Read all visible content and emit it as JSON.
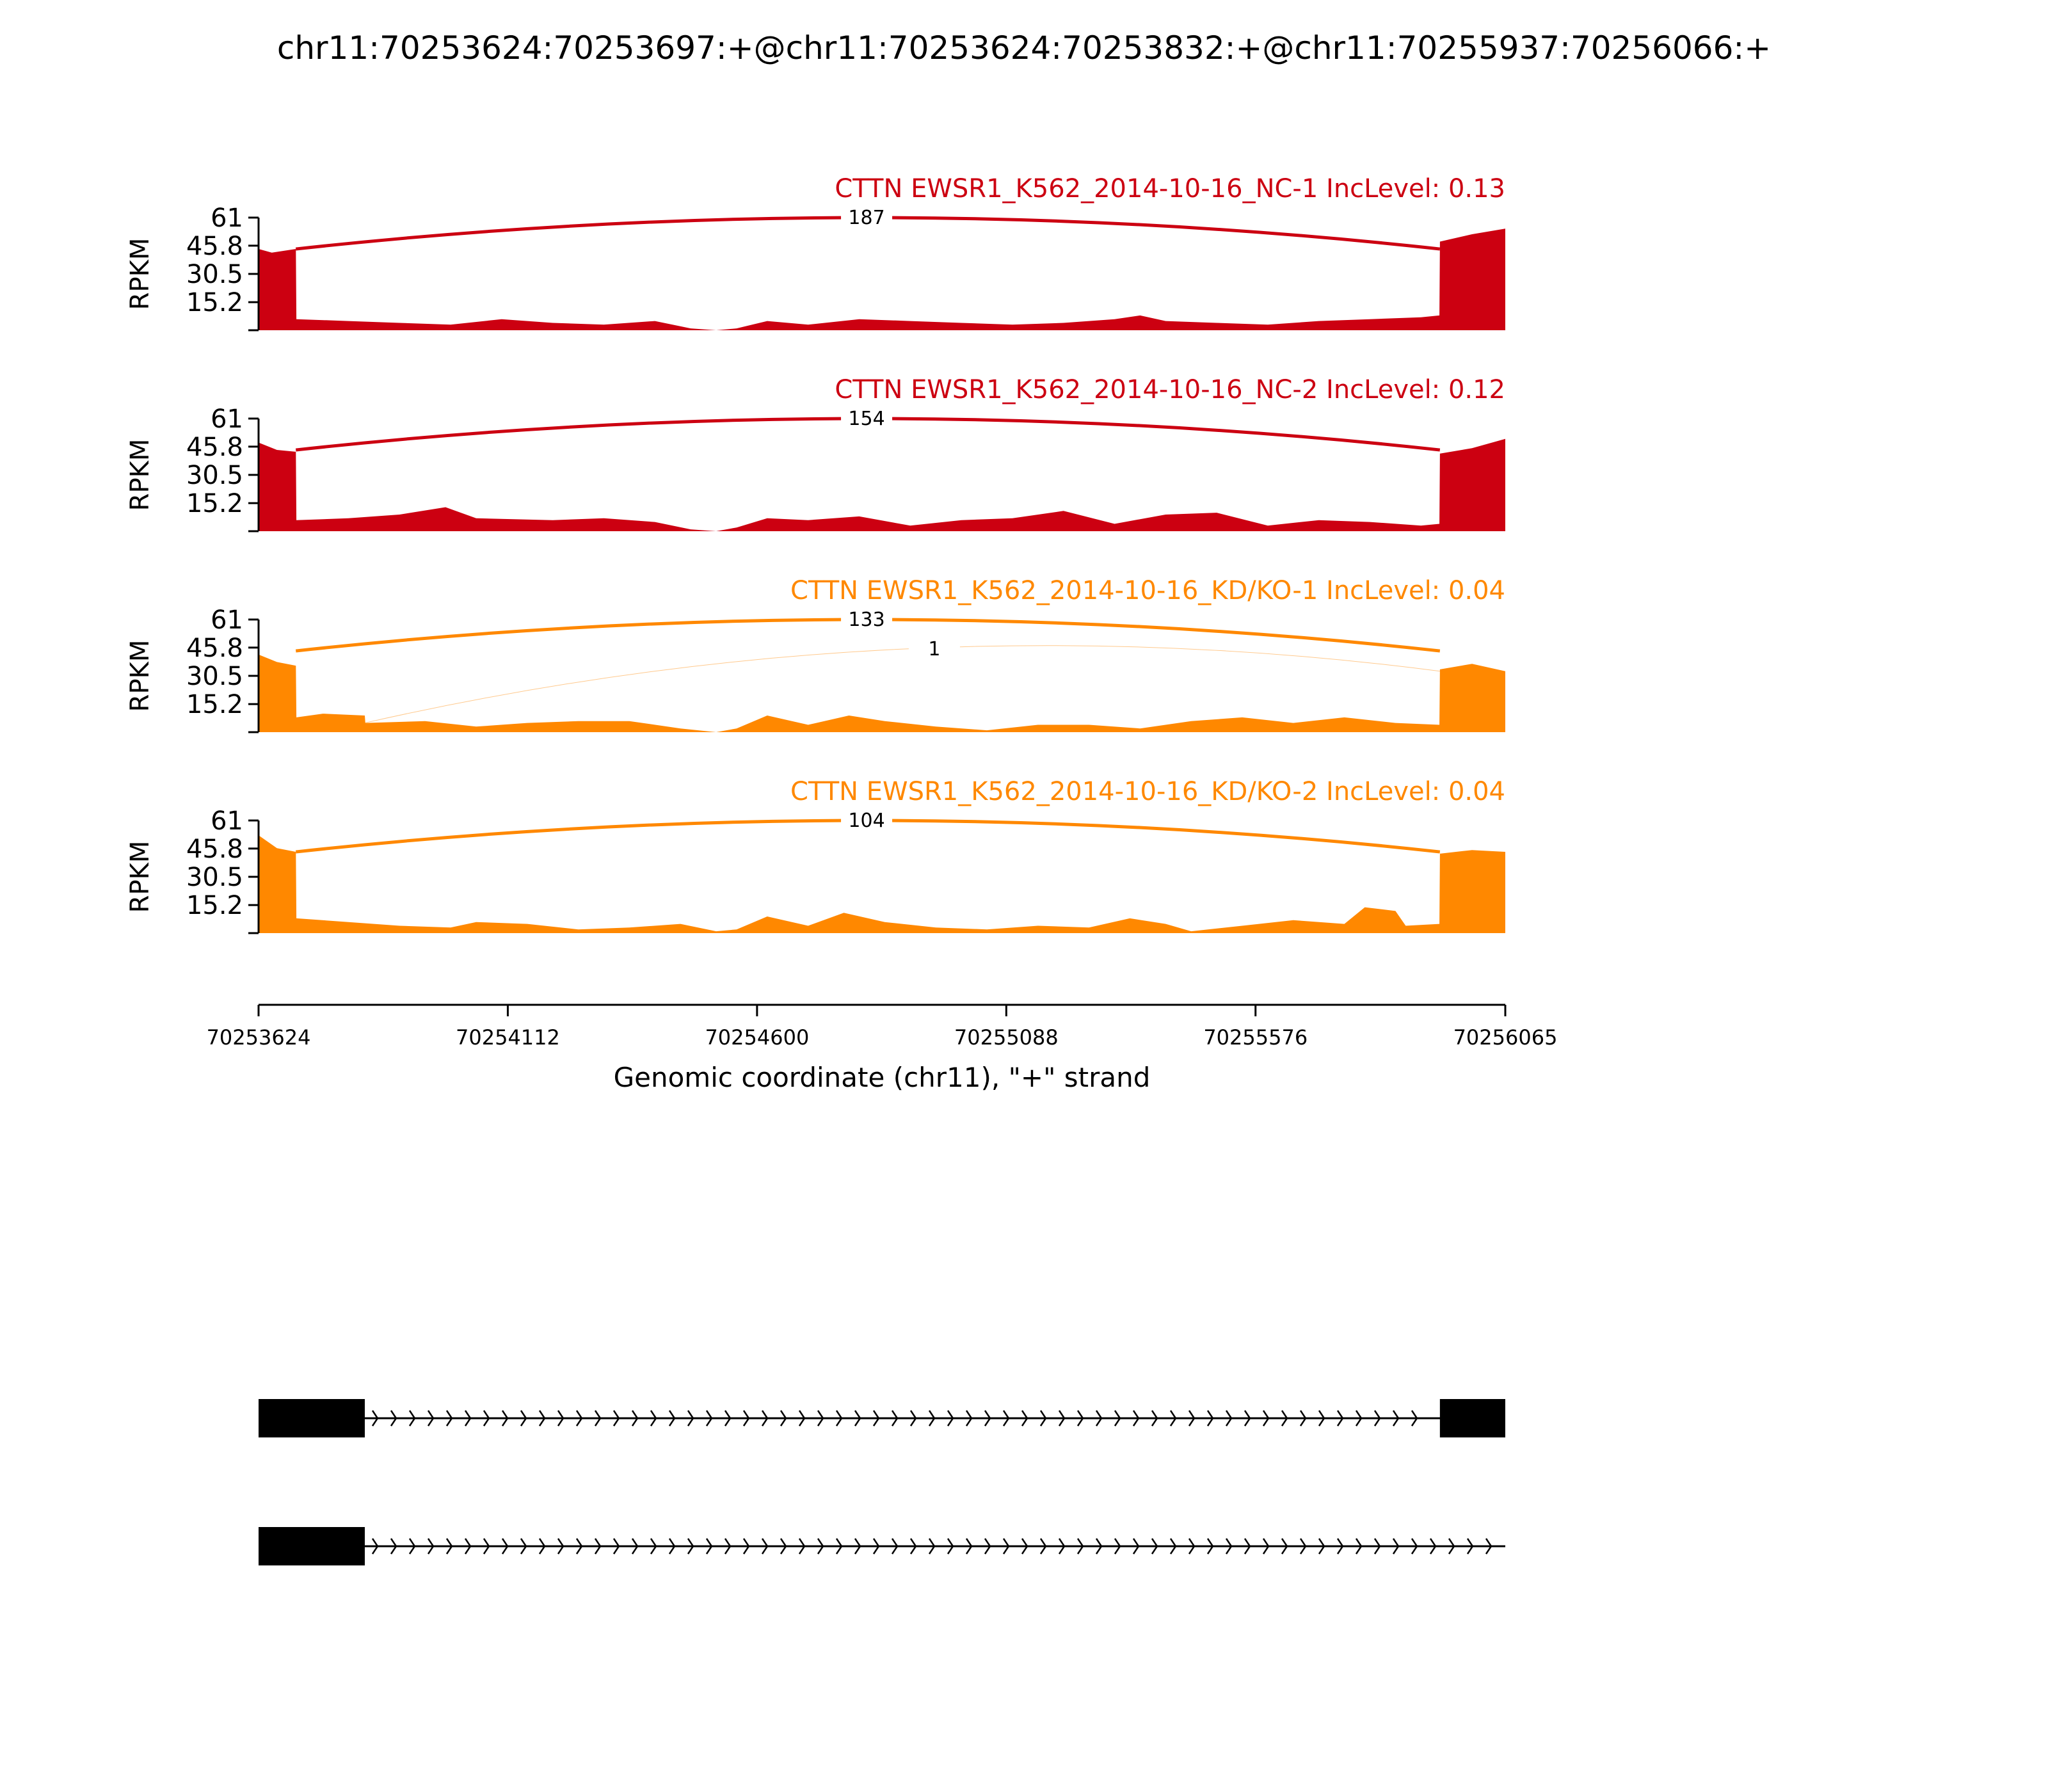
{
  "title": "chr11:70253624:70253697:+@chr11:70253624:70253832:+@chr11:70255937:70256066:+",
  "chart_data": {
    "type": "area",
    "x_range": [
      70253624,
      70256065
    ],
    "y_range": [
      0,
      61
    ],
    "yticks": [
      "61",
      "45.8",
      "30.5",
      "15.2"
    ],
    "ytick_values": [
      61,
      45.8,
      30.5,
      15.2
    ],
    "ylabel": "RPKM",
    "xticks": [
      "70253624",
      "70254112",
      "70254600",
      "70255088",
      "70255576",
      "70256065"
    ],
    "xtick_values": [
      70253624,
      70254112,
      70254600,
      70255088,
      70255576,
      70256065
    ],
    "xlabel": "Genomic coordinate (chr11), \"+\" strand",
    "tracks": [
      {
        "label": "CTTN EWSR1_K562_2014-10-16_NC-1 IncLevel: 0.13",
        "color": "#cc0011",
        "junctions": [
          {
            "from": 70253697,
            "to": 70255937,
            "count": "187",
            "height": 61
          }
        ],
        "coverage": [
          [
            70253624,
            44
          ],
          [
            70253650,
            42
          ],
          [
            70253697,
            44
          ],
          [
            70253698,
            6
          ],
          [
            70253800,
            5
          ],
          [
            70253900,
            4
          ],
          [
            70254000,
            3
          ],
          [
            70254100,
            6
          ],
          [
            70254200,
            4
          ],
          [
            70254300,
            3
          ],
          [
            70254400,
            5
          ],
          [
            70254470,
            1
          ],
          [
            70254520,
            0
          ],
          [
            70254560,
            1
          ],
          [
            70254620,
            5
          ],
          [
            70254700,
            3
          ],
          [
            70254800,
            6
          ],
          [
            70254900,
            5
          ],
          [
            70255000,
            4
          ],
          [
            70255100,
            3
          ],
          [
            70255200,
            4
          ],
          [
            70255300,
            6
          ],
          [
            70255350,
            8
          ],
          [
            70255400,
            5
          ],
          [
            70255500,
            4
          ],
          [
            70255600,
            3
          ],
          [
            70255700,
            5
          ],
          [
            70255800,
            6
          ],
          [
            70255900,
            7
          ],
          [
            70255936,
            8
          ],
          [
            70255937,
            48
          ],
          [
            70256000,
            52
          ],
          [
            70256065,
            55
          ]
        ]
      },
      {
        "label": "CTTN EWSR1_K562_2014-10-16_NC-2 IncLevel: 0.12",
        "color": "#cc0011",
        "junctions": [
          {
            "from": 70253697,
            "to": 70255937,
            "count": "154",
            "height": 61
          }
        ],
        "coverage": [
          [
            70253624,
            48
          ],
          [
            70253660,
            44
          ],
          [
            70253697,
            43
          ],
          [
            70253698,
            6
          ],
          [
            70253800,
            7
          ],
          [
            70253900,
            9
          ],
          [
            70253990,
            13
          ],
          [
            70254050,
            7
          ],
          [
            70254200,
            6
          ],
          [
            70254300,
            7
          ],
          [
            70254400,
            5
          ],
          [
            70254470,
            1
          ],
          [
            70254520,
            0
          ],
          [
            70254560,
            2
          ],
          [
            70254620,
            7
          ],
          [
            70254700,
            6
          ],
          [
            70254800,
            8
          ],
          [
            70254900,
            3
          ],
          [
            70255000,
            6
          ],
          [
            70255100,
            7
          ],
          [
            70255200,
            11
          ],
          [
            70255300,
            4
          ],
          [
            70255400,
            9
          ],
          [
            70255500,
            10
          ],
          [
            70255600,
            3
          ],
          [
            70255700,
            6
          ],
          [
            70255800,
            5
          ],
          [
            70255900,
            3
          ],
          [
            70255936,
            4
          ],
          [
            70255937,
            42
          ],
          [
            70256000,
            45
          ],
          [
            70256065,
            50
          ]
        ]
      },
      {
        "label": "CTTN EWSR1_K562_2014-10-16_KD/KO-1 IncLevel: 0.04",
        "color": "#ff8800",
        "junctions": [
          {
            "from": 70253697,
            "to": 70255937,
            "count": "133",
            "height": 61
          },
          {
            "from": 70253832,
            "to": 70255937,
            "count": "1",
            "height": 45
          }
        ],
        "coverage": [
          [
            70253624,
            42
          ],
          [
            70253660,
            38
          ],
          [
            70253697,
            36
          ],
          [
            70253698,
            8
          ],
          [
            70253750,
            10
          ],
          [
            70253832,
            9
          ],
          [
            70253833,
            5
          ],
          [
            70253950,
            6
          ],
          [
            70254050,
            3
          ],
          [
            70254150,
            5
          ],
          [
            70254250,
            6
          ],
          [
            70254350,
            6
          ],
          [
            70254450,
            2
          ],
          [
            70254520,
            0
          ],
          [
            70254560,
            2
          ],
          [
            70254620,
            9
          ],
          [
            70254700,
            4
          ],
          [
            70254780,
            9
          ],
          [
            70254850,
            6
          ],
          [
            70254950,
            3
          ],
          [
            70255050,
            1
          ],
          [
            70255150,
            4
          ],
          [
            70255250,
            4
          ],
          [
            70255350,
            2
          ],
          [
            70255450,
            6
          ],
          [
            70255550,
            8
          ],
          [
            70255650,
            5
          ],
          [
            70255750,
            8
          ],
          [
            70255850,
            5
          ],
          [
            70255936,
            4
          ],
          [
            70255937,
            34
          ],
          [
            70256000,
            37
          ],
          [
            70256065,
            33
          ]
        ]
      },
      {
        "label": "CTTN EWSR1_K562_2014-10-16_KD/KO-2 IncLevel: 0.04",
        "color": "#ff8800",
        "junctions": [
          {
            "from": 70253697,
            "to": 70255937,
            "count": "104",
            "height": 61
          }
        ],
        "coverage": [
          [
            70253624,
            53
          ],
          [
            70253660,
            46
          ],
          [
            70253697,
            44
          ],
          [
            70253698,
            8
          ],
          [
            70253800,
            6
          ],
          [
            70253900,
            4
          ],
          [
            70254000,
            3
          ],
          [
            70254050,
            6
          ],
          [
            70254150,
            5
          ],
          [
            70254250,
            2
          ],
          [
            70254350,
            3
          ],
          [
            70254450,
            5
          ],
          [
            70254520,
            1
          ],
          [
            70254560,
            2
          ],
          [
            70254620,
            9
          ],
          [
            70254700,
            4
          ],
          [
            70254770,
            11
          ],
          [
            70254850,
            6
          ],
          [
            70254950,
            3
          ],
          [
            70255050,
            2
          ],
          [
            70255150,
            4
          ],
          [
            70255250,
            3
          ],
          [
            70255330,
            8
          ],
          [
            70255400,
            5
          ],
          [
            70255450,
            1
          ],
          [
            70255550,
            4
          ],
          [
            70255650,
            7
          ],
          [
            70255750,
            5
          ],
          [
            70255790,
            14
          ],
          [
            70255850,
            12
          ],
          [
            70255870,
            4
          ],
          [
            70255936,
            5
          ],
          [
            70255937,
            43
          ],
          [
            70256000,
            45
          ],
          [
            70256065,
            44
          ]
        ]
      }
    ],
    "transcripts": [
      {
        "exons": [
          [
            70253624,
            70253832
          ],
          [
            70255937,
            70256065
          ]
        ],
        "line_to": 70256065
      },
      {
        "exons": [
          [
            70253624,
            70253832
          ]
        ],
        "line_to": 70256065
      }
    ]
  }
}
